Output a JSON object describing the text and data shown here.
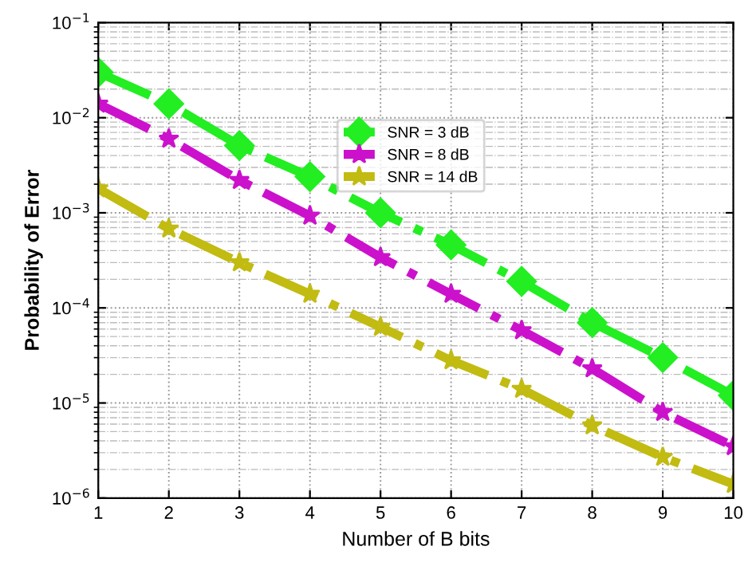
{
  "chart_data": {
    "type": "line",
    "xlabel": "Number of B bits",
    "ylabel": "Probability of Error",
    "x": [
      1,
      2,
      3,
      4,
      5,
      6,
      7,
      8,
      9,
      10
    ],
    "series": [
      {
        "name": "SNR = 3 dB",
        "color": "#22ee22",
        "marker": "diamond",
        "values": [
          0.03,
          0.014,
          0.0051,
          0.0024,
          0.001,
          0.00046,
          0.00019,
          7e-05,
          3e-05,
          1.2e-05
        ]
      },
      {
        "name": "SNR = 8 dB",
        "color": "#cc11cc",
        "marker": "star",
        "values": [
          0.014,
          0.006,
          0.0022,
          0.00093,
          0.00034,
          0.00014,
          5.8e-05,
          2.3e-05,
          8e-06,
          3.5e-06
        ]
      },
      {
        "name": "SNR = 14 dB",
        "color": "#c2bb11",
        "marker": "star",
        "values": [
          0.0018,
          0.00068,
          0.0003,
          0.00014,
          6.3e-05,
          2.8e-05,
          1.4e-05,
          5.8e-06,
          2.7e-06,
          1.4e-06
        ]
      }
    ],
    "line_style": "dashed",
    "log": "y",
    "grid": true,
    "legend": "right",
    "xlim": [
      1,
      10
    ],
    "xticks": [
      1,
      2,
      3,
      4,
      5,
      6,
      7,
      8,
      9,
      10
    ],
    "ylim": [
      1e-06,
      0.1
    ],
    "yticks": [
      {
        "value": 1e-06,
        "label": "10$^{−6}$"
      },
      {
        "value": 1e-05,
        "label": "10$^{−5}$"
      },
      {
        "value": 0.0001,
        "label": "10$^{−4}$"
      },
      {
        "value": 0.001,
        "label": "10$^{−3}$"
      },
      {
        "value": 0.01,
        "label": "10$^{−2}$"
      },
      {
        "value": 0.1,
        "label": "10$^{−1}$"
      }
    ]
  }
}
